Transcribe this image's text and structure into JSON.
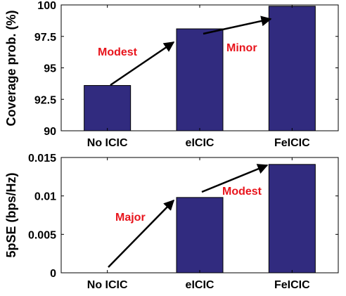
{
  "chart_data": [
    {
      "type": "bar",
      "categories": [
        "No ICIC",
        "eICIC",
        "FeICIC"
      ],
      "values": [
        93.6,
        98.1,
        99.9
      ],
      "ylabel": "Coverage prob. (%)",
      "ylim": [
        90,
        100
      ],
      "yticks": [
        "90",
        "92.5",
        "95",
        "97.5",
        "100"
      ],
      "bar_color": "#312b7f",
      "annotations": [
        {
          "text": "Modest",
          "from_category": "No ICIC",
          "to_category": "eICIC"
        },
        {
          "text": "Minor",
          "from_category": "eICIC",
          "to_category": "FeICIC"
        }
      ],
      "annotation_color": "#e8141c",
      "grid": false
    },
    {
      "type": "bar",
      "categories": [
        "No ICIC",
        "eICIC",
        "FeICIC"
      ],
      "values": [
        0,
        0.0098,
        0.0141
      ],
      "ylabel": "5pSE (bps/Hz)",
      "ylim": [
        0,
        0.015
      ],
      "yticks": [
        "0",
        "0.005",
        "0.01",
        "0.015"
      ],
      "bar_color": "#312b7f",
      "annotations": [
        {
          "text": "Major",
          "from_category": "No ICIC",
          "to_category": "eICIC"
        },
        {
          "text": "Modest",
          "from_category": "eICIC",
          "to_category": "FeICIC"
        }
      ],
      "annotation_color": "#e8141c",
      "grid": false
    }
  ]
}
